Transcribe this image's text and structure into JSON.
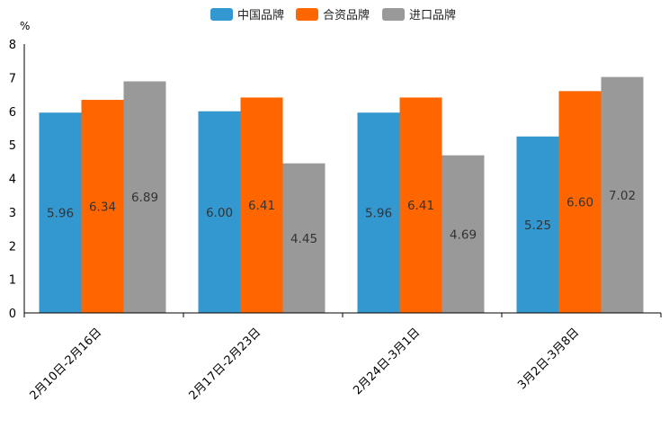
{
  "chart_data": {
    "type": "bar",
    "unit": "%",
    "categories": [
      "2月10日-2月16日",
      "2月17日-2月23日",
      "2月24日-3月1日",
      "3月2日-3月8日"
    ],
    "series": [
      {
        "name": "中国品牌",
        "color": "#3398d0",
        "values": [
          5.96,
          6.0,
          5.96,
          5.25
        ]
      },
      {
        "name": "合资品牌",
        "color": "#ff6600",
        "values": [
          6.34,
          6.41,
          6.41,
          6.6
        ]
      },
      {
        "name": "进口品牌",
        "color": "#999999",
        "values": [
          6.89,
          4.45,
          4.69,
          7.02
        ]
      }
    ],
    "ylim": [
      0,
      8
    ],
    "yticks": [
      0,
      1,
      2,
      3,
      4,
      5,
      6,
      7,
      8
    ],
    "legend_position": "top-center",
    "grid": false
  }
}
